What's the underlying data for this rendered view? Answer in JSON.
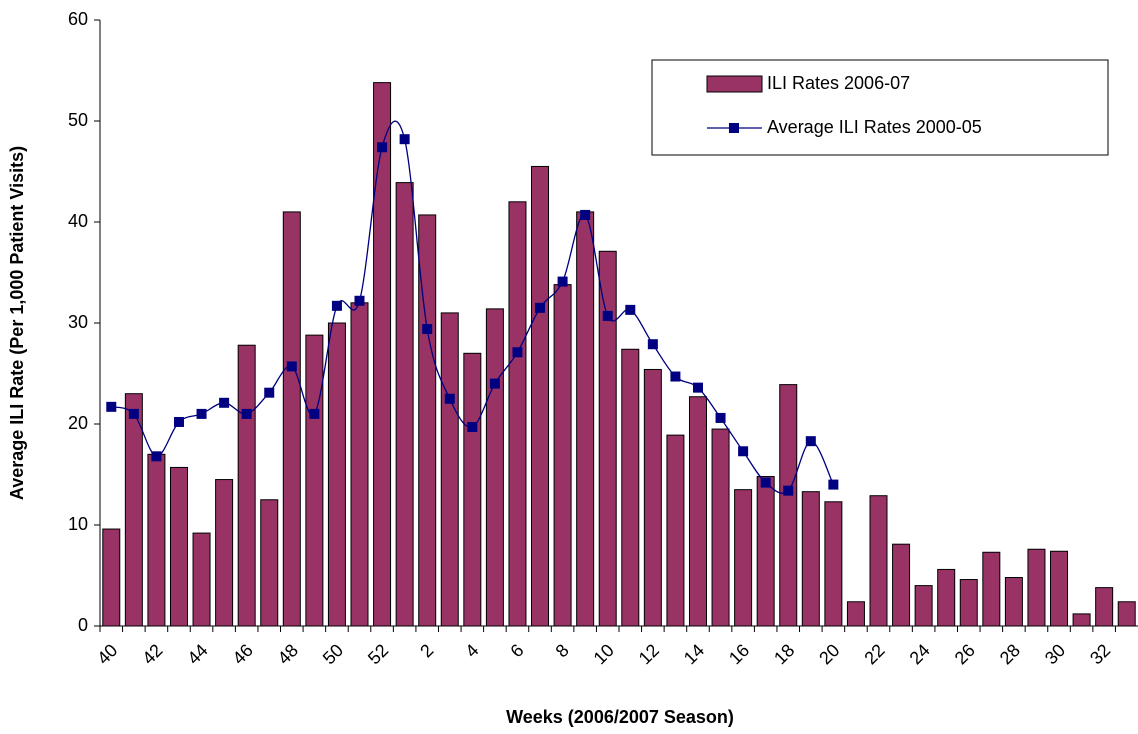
{
  "chart_data": {
    "type": "bar",
    "x_label": "Weeks (2006/2007 Season)",
    "y_label": "Average ILI Rate (Per 1,000 Patient Visits)",
    "categories": [
      "40",
      null,
      "42",
      null,
      "44",
      null,
      "46",
      null,
      "48",
      null,
      "50",
      null,
      "52",
      null,
      "2",
      null,
      "4",
      null,
      "6",
      null,
      "8",
      null,
      "10",
      null,
      "12",
      null,
      "14",
      null,
      "16",
      null,
      "18",
      null,
      "20",
      null,
      "22",
      null,
      "24",
      null,
      "26",
      null,
      "28",
      null,
      "30",
      null,
      "32",
      null
    ],
    "series": [
      {
        "name": "ILI Rates 2006-07",
        "type": "bar",
        "color": "#993366",
        "values": [
          9.6,
          23,
          17,
          15.7,
          9.2,
          14.5,
          27.8,
          12.5,
          41,
          28.8,
          30,
          32,
          53.8,
          43.9,
          40.7,
          31,
          27,
          31.4,
          42,
          45.5,
          33.8,
          41,
          37.1,
          27.4,
          25.4,
          18.9,
          22.7,
          19.5,
          13.5,
          14.8,
          23.9,
          13.3,
          12.3,
          2.4,
          12.9,
          8.1,
          4,
          5.6,
          4.6,
          7.3,
          4.8,
          7.6,
          7.4,
          1.2,
          3.8,
          2.4
        ]
      },
      {
        "name": "Average ILI Rates 2000-05",
        "type": "line",
        "color": "#000080",
        "values": [
          21.7,
          21,
          16.8,
          20.2,
          21,
          22.1,
          21,
          23.1,
          25.7,
          21,
          31.7,
          32.2,
          47.4,
          48.2,
          29.4,
          22.5,
          19.7,
          24,
          27.1,
          31.5,
          34.1,
          40.7,
          30.7,
          31.3,
          27.9,
          24.7,
          23.6,
          20.6,
          17.3,
          14.2,
          13.4,
          18.3,
          14,
          null,
          null,
          null,
          null,
          null,
          null,
          null,
          null,
          null,
          null,
          null,
          null,
          null
        ]
      }
    ],
    "ylim": [
      0,
      60
    ],
    "yticks": [
      0,
      10,
      20,
      30,
      40,
      50,
      60
    ],
    "legend": "upper right"
  }
}
